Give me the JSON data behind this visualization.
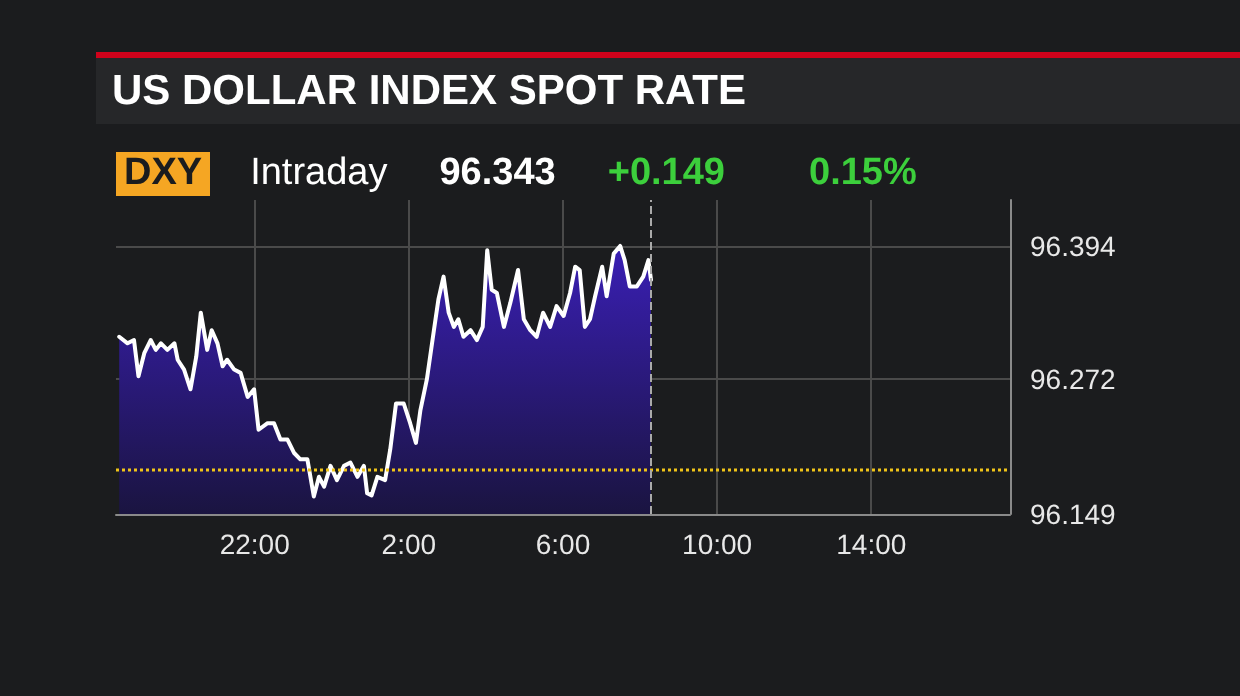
{
  "chart_data": {
    "type": "area",
    "title": "US DOLLAR INDEX SPOT RATE",
    "subtitle": "Intraday",
    "annotations": [
      "DXY",
      "96.343",
      "+0.149",
      "0.15%"
    ],
    "x": [
      "2000-01-01T18:29",
      "2000-01-01T18:42",
      "2000-01-01T18:52",
      "2000-01-01T18:59",
      "2000-01-01T19:08",
      "2000-01-01T19:18",
      "2000-01-01T19:26",
      "2000-01-01T19:34",
      "2000-01-01T19:44",
      "2000-01-01T19:55",
      "2000-01-01T20:00",
      "2000-01-01T20:10",
      "2000-01-01T20:20",
      "2000-01-01T20:29",
      "2000-01-01T20:36",
      "2000-01-01T20:46",
      "2000-01-01T20:53",
      "2000-01-01T21:02",
      "2000-01-01T21:10",
      "2000-01-01T21:17",
      "2000-01-01T21:28",
      "2000-01-01T21:38",
      "2000-01-01T21:49",
      "2000-01-01T21:59",
      "2000-01-01T22:06",
      "2000-01-01T22:20",
      "2000-01-01T22:30",
      "2000-01-01T22:40",
      "2000-01-01T22:51",
      "2000-01-01T23:01",
      "2000-01-01T23:11",
      "2000-01-01T23:22",
      "2000-01-01T23:32",
      "2000-01-01T23:40",
      "2000-01-01T23:48",
      "2000-01-01T23:58",
      "2000-01-02T00:08",
      "2000-01-02T00:19",
      "2000-01-02T00:29",
      "2000-01-02T00:40",
      "2000-01-02T00:50",
      "2000-01-02T00:55",
      "2000-01-02T01:02",
      "2000-01-02T01:11",
      "2000-01-02T01:23",
      "2000-01-02T01:31",
      "2000-01-02T01:40",
      "2000-01-02T01:52",
      "2000-01-02T02:02",
      "2000-01-02T02:11",
      "2000-01-02T02:18",
      "2000-01-02T02:28",
      "2000-01-02T02:39",
      "2000-01-02T02:46",
      "2000-01-02T02:54",
      "2000-01-02T03:02",
      "2000-01-02T03:10",
      "2000-01-02T03:17",
      "2000-01-02T03:25",
      "2000-01-02T03:36",
      "2000-01-02T03:46",
      "2000-01-02T03:55",
      "2000-01-02T04:02",
      "2000-01-02T04:09",
      "2000-01-02T04:17",
      "2000-01-02T04:28",
      "2000-01-02T04:38",
      "2000-01-02T04:50",
      "2000-01-02T04:59",
      "2000-01-02T05:09",
      "2000-01-02T05:19",
      "2000-01-02T05:29",
      "2000-01-02T05:40",
      "2000-01-02T05:50",
      "2000-01-02T06:01",
      "2000-01-02T06:11",
      "2000-01-02T06:19",
      "2000-01-02T06:26",
      "2000-01-02T06:34",
      "2000-01-02T06:42",
      "2000-01-02T06:50",
      "2000-01-02T07:01",
      "2000-01-02T07:08",
      "2000-01-02T07:19",
      "2000-01-02T07:29",
      "2000-01-02T07:36",
      "2000-01-02T07:44",
      "2000-01-02T07:55",
      "2000-01-02T08:05",
      "2000-01-02T08:13",
      "2000-01-02T08:17"
    ],
    "series": [
      {
        "color": "#ffffff",
        "values": [
          96.311,
          96.305,
          96.308,
          96.275,
          96.296,
          96.308,
          96.299,
          96.305,
          96.299,
          96.305,
          96.29,
          96.281,
          96.263,
          96.293,
          96.333,
          96.299,
          96.317,
          96.305,
          96.284,
          96.29,
          96.281,
          96.278,
          96.256,
          96.263,
          96.226,
          96.232,
          96.232,
          96.217,
          96.217,
          96.205,
          96.199,
          96.199,
          96.165,
          96.183,
          96.174,
          96.193,
          96.18,
          96.193,
          96.196,
          96.183,
          96.193,
          96.168,
          96.166,
          96.183,
          96.18,
          96.208,
          96.25,
          96.25,
          96.232,
          96.214,
          96.244,
          96.272,
          96.317,
          96.345,
          96.366,
          96.333,
          96.32,
          96.327,
          96.311,
          96.317,
          96.308,
          96.32,
          96.39,
          96.354,
          96.351,
          96.32,
          96.342,
          96.372,
          96.327,
          96.317,
          96.311,
          96.333,
          96.32,
          96.339,
          96.33,
          96.351,
          96.375,
          96.372,
          96.32,
          96.327,
          96.348,
          96.375,
          96.348,
          96.387,
          96.394,
          96.381,
          96.357,
          96.357,
          96.366,
          96.381,
          96.363
        ]
      }
    ],
    "xlim": [
      "2000-01-01T18:24",
      "2000-01-02T17:36"
    ],
    "xticks": [
      {
        "value": "2000-01-01T22:00",
        "label": "22:00"
      },
      {
        "value": "2000-01-02T02:00",
        "label": "2:00"
      },
      {
        "value": "2000-01-02T06:00",
        "label": "6:00"
      },
      {
        "value": "2000-01-02T10:00",
        "label": "10:00"
      },
      {
        "value": "2000-01-02T14:00",
        "label": "14:00"
      }
    ],
    "ylim": [
      96.149,
      96.436
    ],
    "yticks": [
      96.149,
      96.272,
      96.394
    ],
    "ref_lines": [
      {
        "axis": "y",
        "value": 96.19,
        "color": "#f0c419",
        "line_style": "dotted"
      },
      {
        "axis": "x",
        "value": "2000-01-02T08:17",
        "color": "#aaaaaa",
        "line_style": "dashed"
      }
    ],
    "grid": true,
    "marker": "none",
    "line_style": "solid"
  }
}
